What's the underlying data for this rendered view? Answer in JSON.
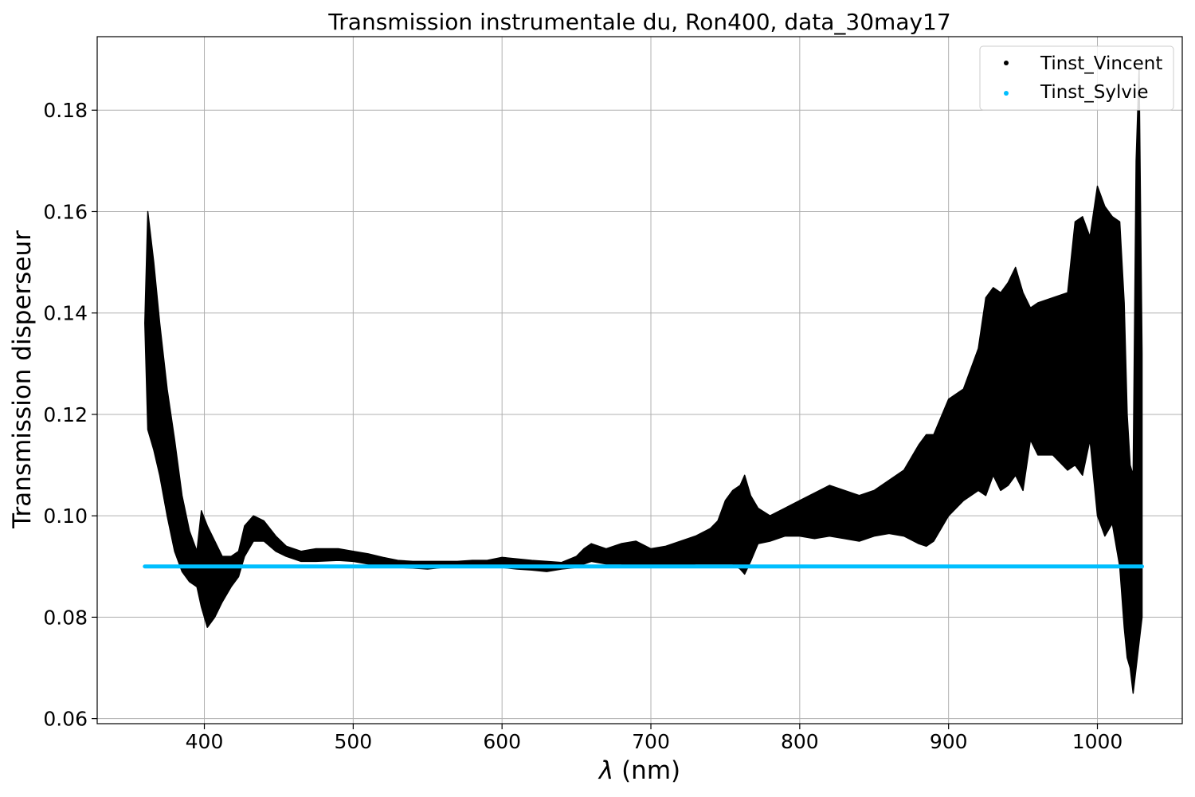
{
  "chart_data": {
    "type": "scatter",
    "title": "Transmission instrumentale du, Ron400, data_30may17",
    "xlabel_symbol": "λ",
    "xlabel": " (nm)",
    "ylabel": "Transmission disperseur",
    "xlim": [
      328,
      1057
    ],
    "ylim": [
      0.059,
      0.1945
    ],
    "x_ticks": [
      400,
      500,
      600,
      700,
      800,
      900,
      1000
    ],
    "y_ticks": [
      0.06,
      0.08,
      0.1,
      0.12,
      0.14,
      0.16,
      0.18
    ],
    "y_tick_labels": [
      "0.06",
      "0.08",
      "0.10",
      "0.12",
      "0.14",
      "0.16",
      "0.18"
    ],
    "grid": true,
    "legend_position": "top-right",
    "series": [
      {
        "name": "Tinst_Vincent",
        "color": "#000000",
        "marker": "dot",
        "envelope_x": [
          360,
          362,
          366,
          370,
          375,
          380,
          385,
          390,
          395,
          398,
          402,
          407,
          412,
          418,
          423,
          427,
          433,
          440,
          448,
          455,
          465,
          475,
          490,
          500,
          510,
          520,
          530,
          540,
          550,
          560,
          570,
          580,
          590,
          600,
          610,
          620,
          630,
          640,
          650,
          655,
          660,
          670,
          680,
          690,
          700,
          710,
          720,
          730,
          740,
          745,
          750,
          755,
          760,
          763,
          767,
          772,
          780,
          790,
          800,
          810,
          820,
          830,
          840,
          850,
          860,
          870,
          880,
          885,
          890,
          900,
          910,
          920,
          925,
          930,
          935,
          940,
          945,
          950,
          955,
          960,
          970,
          980,
          985,
          990,
          995,
          1000,
          1005,
          1010,
          1015,
          1018,
          1020,
          1022,
          1024,
          1026,
          1028,
          1030
        ],
        "envelope_upper": [
          0.138,
          0.16,
          0.15,
          0.138,
          0.125,
          0.115,
          0.104,
          0.097,
          0.093,
          0.101,
          0.098,
          0.095,
          0.092,
          0.092,
          0.093,
          0.098,
          0.1,
          0.099,
          0.096,
          0.094,
          0.093,
          0.0935,
          0.0935,
          0.093,
          0.0925,
          0.0918,
          0.0912,
          0.091,
          0.091,
          0.091,
          0.091,
          0.0912,
          0.0912,
          0.0918,
          0.0915,
          0.0912,
          0.091,
          0.0908,
          0.092,
          0.0935,
          0.0945,
          0.0935,
          0.0945,
          0.095,
          0.0935,
          0.094,
          0.095,
          0.096,
          0.0975,
          0.099,
          0.103,
          0.105,
          0.106,
          0.108,
          0.104,
          0.1015,
          0.1,
          0.1015,
          0.103,
          0.1045,
          0.106,
          0.105,
          0.104,
          0.105,
          0.107,
          0.109,
          0.114,
          0.116,
          0.116,
          0.123,
          0.125,
          0.133,
          0.143,
          0.145,
          0.144,
          0.146,
          0.149,
          0.144,
          0.141,
          0.142,
          0.143,
          0.144,
          0.158,
          0.159,
          0.155,
          0.165,
          0.161,
          0.159,
          0.158,
          0.142,
          0.12,
          0.11,
          0.108,
          0.17,
          0.188,
          0.132
        ],
        "envelope_lower": [
          0.138,
          0.117,
          0.113,
          0.108,
          0.1,
          0.093,
          0.089,
          0.087,
          0.086,
          0.082,
          0.078,
          0.08,
          0.083,
          0.086,
          0.088,
          0.092,
          0.095,
          0.095,
          0.093,
          0.092,
          0.091,
          0.091,
          0.0912,
          0.091,
          0.0905,
          0.09,
          0.0898,
          0.0897,
          0.0895,
          0.0898,
          0.0898,
          0.0898,
          0.0898,
          0.0898,
          0.0895,
          0.0893,
          0.089,
          0.0895,
          0.0898,
          0.0905,
          0.091,
          0.0905,
          0.0905,
          0.09,
          0.09,
          0.09,
          0.09,
          0.0905,
          0.0905,
          0.0905,
          0.0905,
          0.0905,
          0.0895,
          0.0885,
          0.091,
          0.0945,
          0.095,
          0.096,
          0.096,
          0.0955,
          0.096,
          0.0955,
          0.095,
          0.096,
          0.0965,
          0.096,
          0.0945,
          0.094,
          0.095,
          0.1,
          0.103,
          0.105,
          0.104,
          0.108,
          0.105,
          0.106,
          0.108,
          0.105,
          0.115,
          0.112,
          0.112,
          0.109,
          0.11,
          0.108,
          0.115,
          0.1,
          0.096,
          0.0985,
          0.09,
          0.078,
          0.072,
          0.07,
          0.065,
          0.07,
          0.075,
          0.08
        ]
      },
      {
        "name": "Tinst_Sylvie",
        "color": "#00bfff",
        "marker": "dot",
        "x": [
          360,
          1030
        ],
        "values": [
          0.09,
          0.09
        ]
      }
    ]
  }
}
